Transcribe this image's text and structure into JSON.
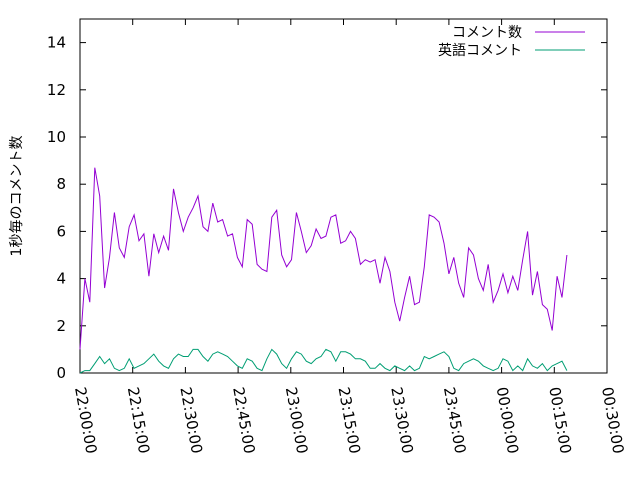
{
  "chart_data": {
    "type": "line",
    "xlabel": "",
    "ylabel": "1秒毎のコメント数",
    "ylim": [
      0,
      15
    ],
    "yticks": [
      0,
      2,
      4,
      6,
      8,
      10,
      12,
      14
    ],
    "xlim_minutes": [
      0,
      150
    ],
    "xticks": [
      "22:00:00",
      "22:15:00",
      "22:30:00",
      "22:45:00",
      "23:00:00",
      "23:15:00",
      "23:30:00",
      "23:45:00",
      "00:00:00",
      "00:15:00",
      "00:30:00"
    ],
    "grid": false,
    "legend_position": "top-right",
    "x_step_minutes": 1.4,
    "series": [
      {
        "name": "コメント数",
        "color": "#9400d3",
        "values": [
          1.0,
          4.0,
          3.0,
          8.7,
          7.5,
          3.6,
          4.9,
          6.8,
          5.3,
          4.9,
          6.2,
          6.7,
          5.6,
          5.9,
          4.1,
          5.9,
          5.1,
          5.8,
          5.2,
          7.8,
          6.8,
          6.0,
          6.6,
          7.0,
          7.5,
          6.2,
          6.0,
          7.2,
          6.4,
          6.5,
          5.8,
          5.9,
          4.9,
          4.5,
          6.5,
          6.3,
          4.6,
          4.4,
          4.3,
          6.6,
          6.9,
          5.0,
          4.5,
          4.8,
          6.8,
          6.0,
          5.1,
          5.4,
          6.1,
          5.7,
          5.8,
          6.6,
          6.7,
          5.5,
          5.6,
          6.0,
          5.7,
          4.6,
          4.8,
          4.7,
          4.8,
          3.8,
          4.9,
          4.3,
          3.0,
          2.2,
          3.2,
          4.1,
          2.9,
          3.0,
          4.5,
          6.7,
          6.6,
          6.4,
          5.5,
          4.2,
          4.9,
          3.8,
          3.2,
          5.3,
          5.0,
          4.0,
          3.5,
          4.6,
          3.0,
          3.5,
          4.2,
          3.4,
          4.1,
          3.5,
          4.8,
          6.0,
          3.3,
          4.3,
          2.9,
          2.7,
          1.8,
          4.1,
          3.2,
          5.0
        ]
      },
      {
        "name": "英語コメント",
        "color": "#009e73",
        "values": [
          0.0,
          0.1,
          0.1,
          0.4,
          0.7,
          0.4,
          0.6,
          0.2,
          0.1,
          0.2,
          0.6,
          0.2,
          0.3,
          0.4,
          0.6,
          0.8,
          0.5,
          0.3,
          0.2,
          0.6,
          0.8,
          0.7,
          0.7,
          1.0,
          1.0,
          0.7,
          0.5,
          0.8,
          0.9,
          0.8,
          0.7,
          0.5,
          0.3,
          0.2,
          0.6,
          0.5,
          0.2,
          0.1,
          0.6,
          1.0,
          0.8,
          0.4,
          0.2,
          0.6,
          0.9,
          0.8,
          0.5,
          0.4,
          0.6,
          0.7,
          1.0,
          0.9,
          0.5,
          0.9,
          0.9,
          0.8,
          0.6,
          0.6,
          0.5,
          0.2,
          0.2,
          0.4,
          0.2,
          0.1,
          0.3,
          0.2,
          0.1,
          0.3,
          0.1,
          0.2,
          0.7,
          0.6,
          0.7,
          0.8,
          0.9,
          0.7,
          0.2,
          0.1,
          0.4,
          0.5,
          0.6,
          0.5,
          0.3,
          0.2,
          0.1,
          0.2,
          0.6,
          0.5,
          0.1,
          0.3,
          0.1,
          0.6,
          0.3,
          0.2,
          0.4,
          0.1,
          0.3,
          0.4,
          0.5,
          0.1
        ]
      }
    ]
  }
}
